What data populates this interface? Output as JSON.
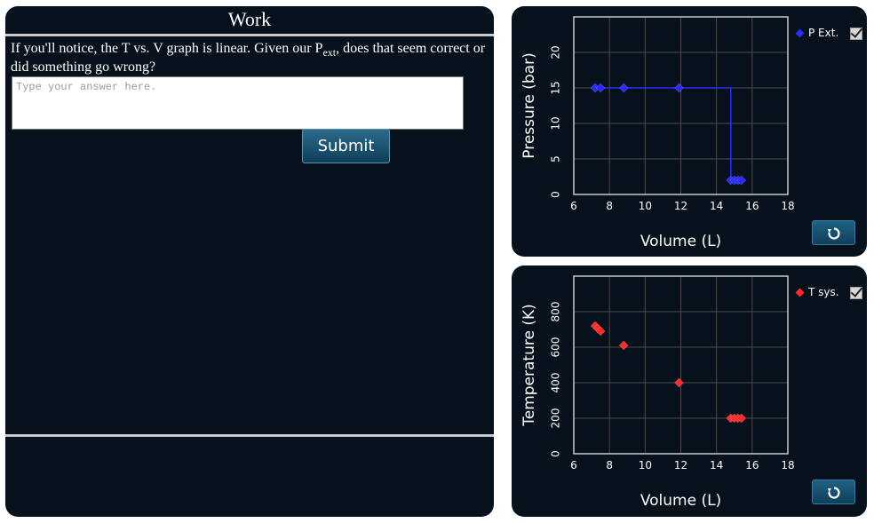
{
  "work": {
    "title": "Work",
    "question_before": "If you'll notice, the T vs. V graph is linear. Given our P",
    "question_sub": "ext",
    "question_after": ", does that seem correct or did something go wrong?",
    "answer_placeholder": "Type your answer here.",
    "answer_value": "",
    "submit_label": "Submit"
  },
  "colors": {
    "panel_bg": "#06111c",
    "pressure_series": "#2b2bff",
    "temperature_series": "#ff2b2b",
    "grid": "#4a4a4a",
    "plot_border": "#c8c8c8"
  },
  "pressure_chart": {
    "legend_label": "P Ext.",
    "legend_checked": true,
    "reset_icon": "reset-icon"
  },
  "temperature_chart": {
    "legend_label": "T sys.",
    "legend_checked": true,
    "reset_icon": "reset-icon"
  },
  "chart_data": [
    {
      "type": "line",
      "xlabel": "Volume (L)",
      "ylabel": "Pressure (bar)",
      "xlim": [
        6,
        18
      ],
      "ylim": [
        0,
        25
      ],
      "xticks": [
        6,
        8,
        10,
        12,
        14,
        16,
        18
      ],
      "yticks": [
        0,
        5,
        10,
        15,
        20
      ],
      "grid": true,
      "legend_placement": "top-right",
      "series": [
        {
          "name": "P Ext.",
          "markers": [
            {
              "x": 7.2,
              "y": 15
            },
            {
              "x": 7.5,
              "y": 15
            },
            {
              "x": 8.8,
              "y": 15
            },
            {
              "x": 11.9,
              "y": 15
            },
            {
              "x": 14.8,
              "y": 2
            },
            {
              "x": 15.0,
              "y": 2
            },
            {
              "x": 15.2,
              "y": 2
            },
            {
              "x": 15.4,
              "y": 2
            }
          ],
          "path": [
            {
              "x": 7.2,
              "y": 15
            },
            {
              "x": 14.8,
              "y": 15
            },
            {
              "x": 14.8,
              "y": 2
            },
            {
              "x": 15.4,
              "y": 2
            }
          ]
        }
      ]
    },
    {
      "type": "scatter",
      "xlabel": "Volume (L)",
      "ylabel": "Temperature (K)",
      "xlim": [
        6,
        18
      ],
      "ylim": [
        0,
        1000
      ],
      "xticks": [
        6,
        8,
        10,
        12,
        14,
        16,
        18
      ],
      "yticks": [
        0,
        200,
        400,
        600,
        800
      ],
      "grid": true,
      "legend_placement": "top-right",
      "series": [
        {
          "name": "T sys.",
          "markers": [
            {
              "x": 7.2,
              "y": 720
            },
            {
              "x": 7.35,
              "y": 705
            },
            {
              "x": 7.5,
              "y": 690
            },
            {
              "x": 8.8,
              "y": 610
            },
            {
              "x": 11.9,
              "y": 400
            },
            {
              "x": 14.8,
              "y": 200
            },
            {
              "x": 15.0,
              "y": 200
            },
            {
              "x": 15.2,
              "y": 200
            },
            {
              "x": 15.4,
              "y": 200
            }
          ]
        }
      ]
    }
  ]
}
